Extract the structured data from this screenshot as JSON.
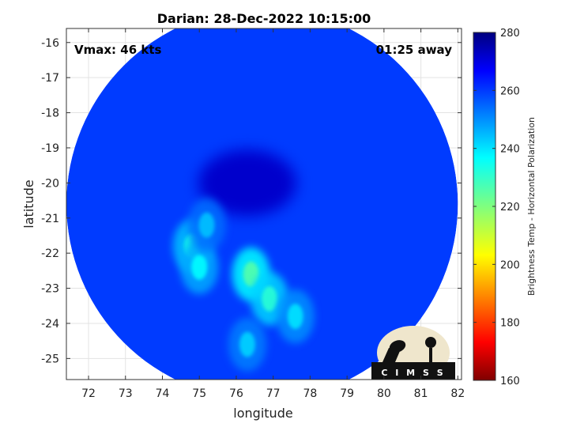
{
  "chart_data": {
    "type": "heatmap",
    "title": "Darian: 28-Dec-2022 10:15:00",
    "xlabel": "longitude",
    "ylabel": "latitude",
    "xlim": [
      71.4,
      82.1
    ],
    "ylim": [
      -25.6,
      -15.6
    ],
    "x_ticks": [
      72,
      73,
      74,
      75,
      76,
      77,
      78,
      79,
      80,
      81,
      82
    ],
    "y_ticks": [
      -16,
      -17,
      -18,
      -19,
      -20,
      -21,
      -22,
      -23,
      -24,
      -25
    ],
    "grid": true,
    "colorbar": {
      "label": "Brightness Temp - Horizontal Polarization",
      "range": [
        160,
        280
      ],
      "ticks": [
        280,
        260,
        240,
        220,
        200,
        180,
        160
      ],
      "colormap": "jet",
      "location": "right"
    },
    "swath": {
      "center_lon": 76.7,
      "center_lat": -20.6,
      "radius_deg": 5.3,
      "typical_value": 258
    },
    "low_temp_features": [
      {
        "lon": 74.8,
        "lat": -21.8,
        "value": 232
      },
      {
        "lon": 75.0,
        "lat": -22.4,
        "value": 235
      },
      {
        "lon": 76.4,
        "lat": -22.6,
        "value": 225
      },
      {
        "lon": 76.9,
        "lat": -23.3,
        "value": 230
      },
      {
        "lon": 77.6,
        "lat": -23.8,
        "value": 238
      },
      {
        "lon": 76.3,
        "lat": -24.6,
        "value": 240
      },
      {
        "lon": 75.2,
        "lat": -21.2,
        "value": 242
      }
    ],
    "storm_center": {
      "lon": 76.3,
      "lat": -20.0
    }
  },
  "annotations": {
    "vmax": "Vmax: 46 kts",
    "time_away": "01:25 away"
  },
  "logo": {
    "text": "CIMSS"
  },
  "colors": {
    "jet": [
      "#00007f",
      "#0000ff",
      "#007fff",
      "#00ffff",
      "#7fff7f",
      "#ffff00",
      "#ff7f00",
      "#ff0000",
      "#7f0000"
    ]
  }
}
